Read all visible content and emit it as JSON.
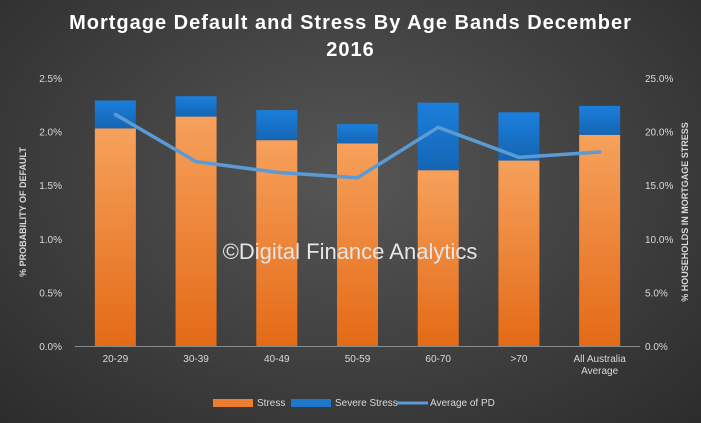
{
  "chart_data": {
    "type": "bar",
    "title_line1": "Mortgage  Default  and  Stress  By  Age  Bands  December",
    "title_line2": "2016",
    "watermark": "©Digital Finance Analytics",
    "categories": [
      [
        "20-29"
      ],
      [
        "30-39"
      ],
      [
        "40-49"
      ],
      [
        "50-59"
      ],
      [
        "60-70"
      ],
      [
        ">70"
      ],
      [
        "All Australia",
        "Average"
      ]
    ],
    "series": [
      {
        "name": "Stress",
        "type": "bar",
        "axis": "right",
        "color": "#ed7d31",
        "values": [
          20.3,
          21.4,
          19.2,
          18.9,
          16.4,
          17.3,
          19.7
        ]
      },
      {
        "name": "Severe Stress",
        "type": "bar",
        "axis": "right",
        "color": "#1f77c9",
        "values": [
          2.6,
          1.9,
          2.8,
          1.8,
          6.3,
          4.5,
          2.7
        ]
      },
      {
        "name": "Average of PD",
        "type": "line",
        "axis": "left",
        "color": "#5b9bd5",
        "values": [
          2.16,
          1.72,
          1.62,
          1.57,
          2.04,
          1.76,
          1.81
        ]
      }
    ],
    "ylabel_left": "% PROBABILITY OF DEFAULT",
    "ylabel_right": "% HOUSEHOLDS IN MORTGAGE STRESS",
    "yticks_left": [
      "0.0%",
      "0.5%",
      "1.0%",
      "1.5%",
      "2.0%",
      "2.5%"
    ],
    "yticks_right": [
      "0.0%",
      "5.0%",
      "10.0%",
      "15.0%",
      "20.0%",
      "25.0%"
    ],
    "ylim_left": [
      0,
      2.5
    ],
    "ylim_right": [
      0,
      25
    ],
    "grid": false,
    "legend_position": "bottom"
  }
}
